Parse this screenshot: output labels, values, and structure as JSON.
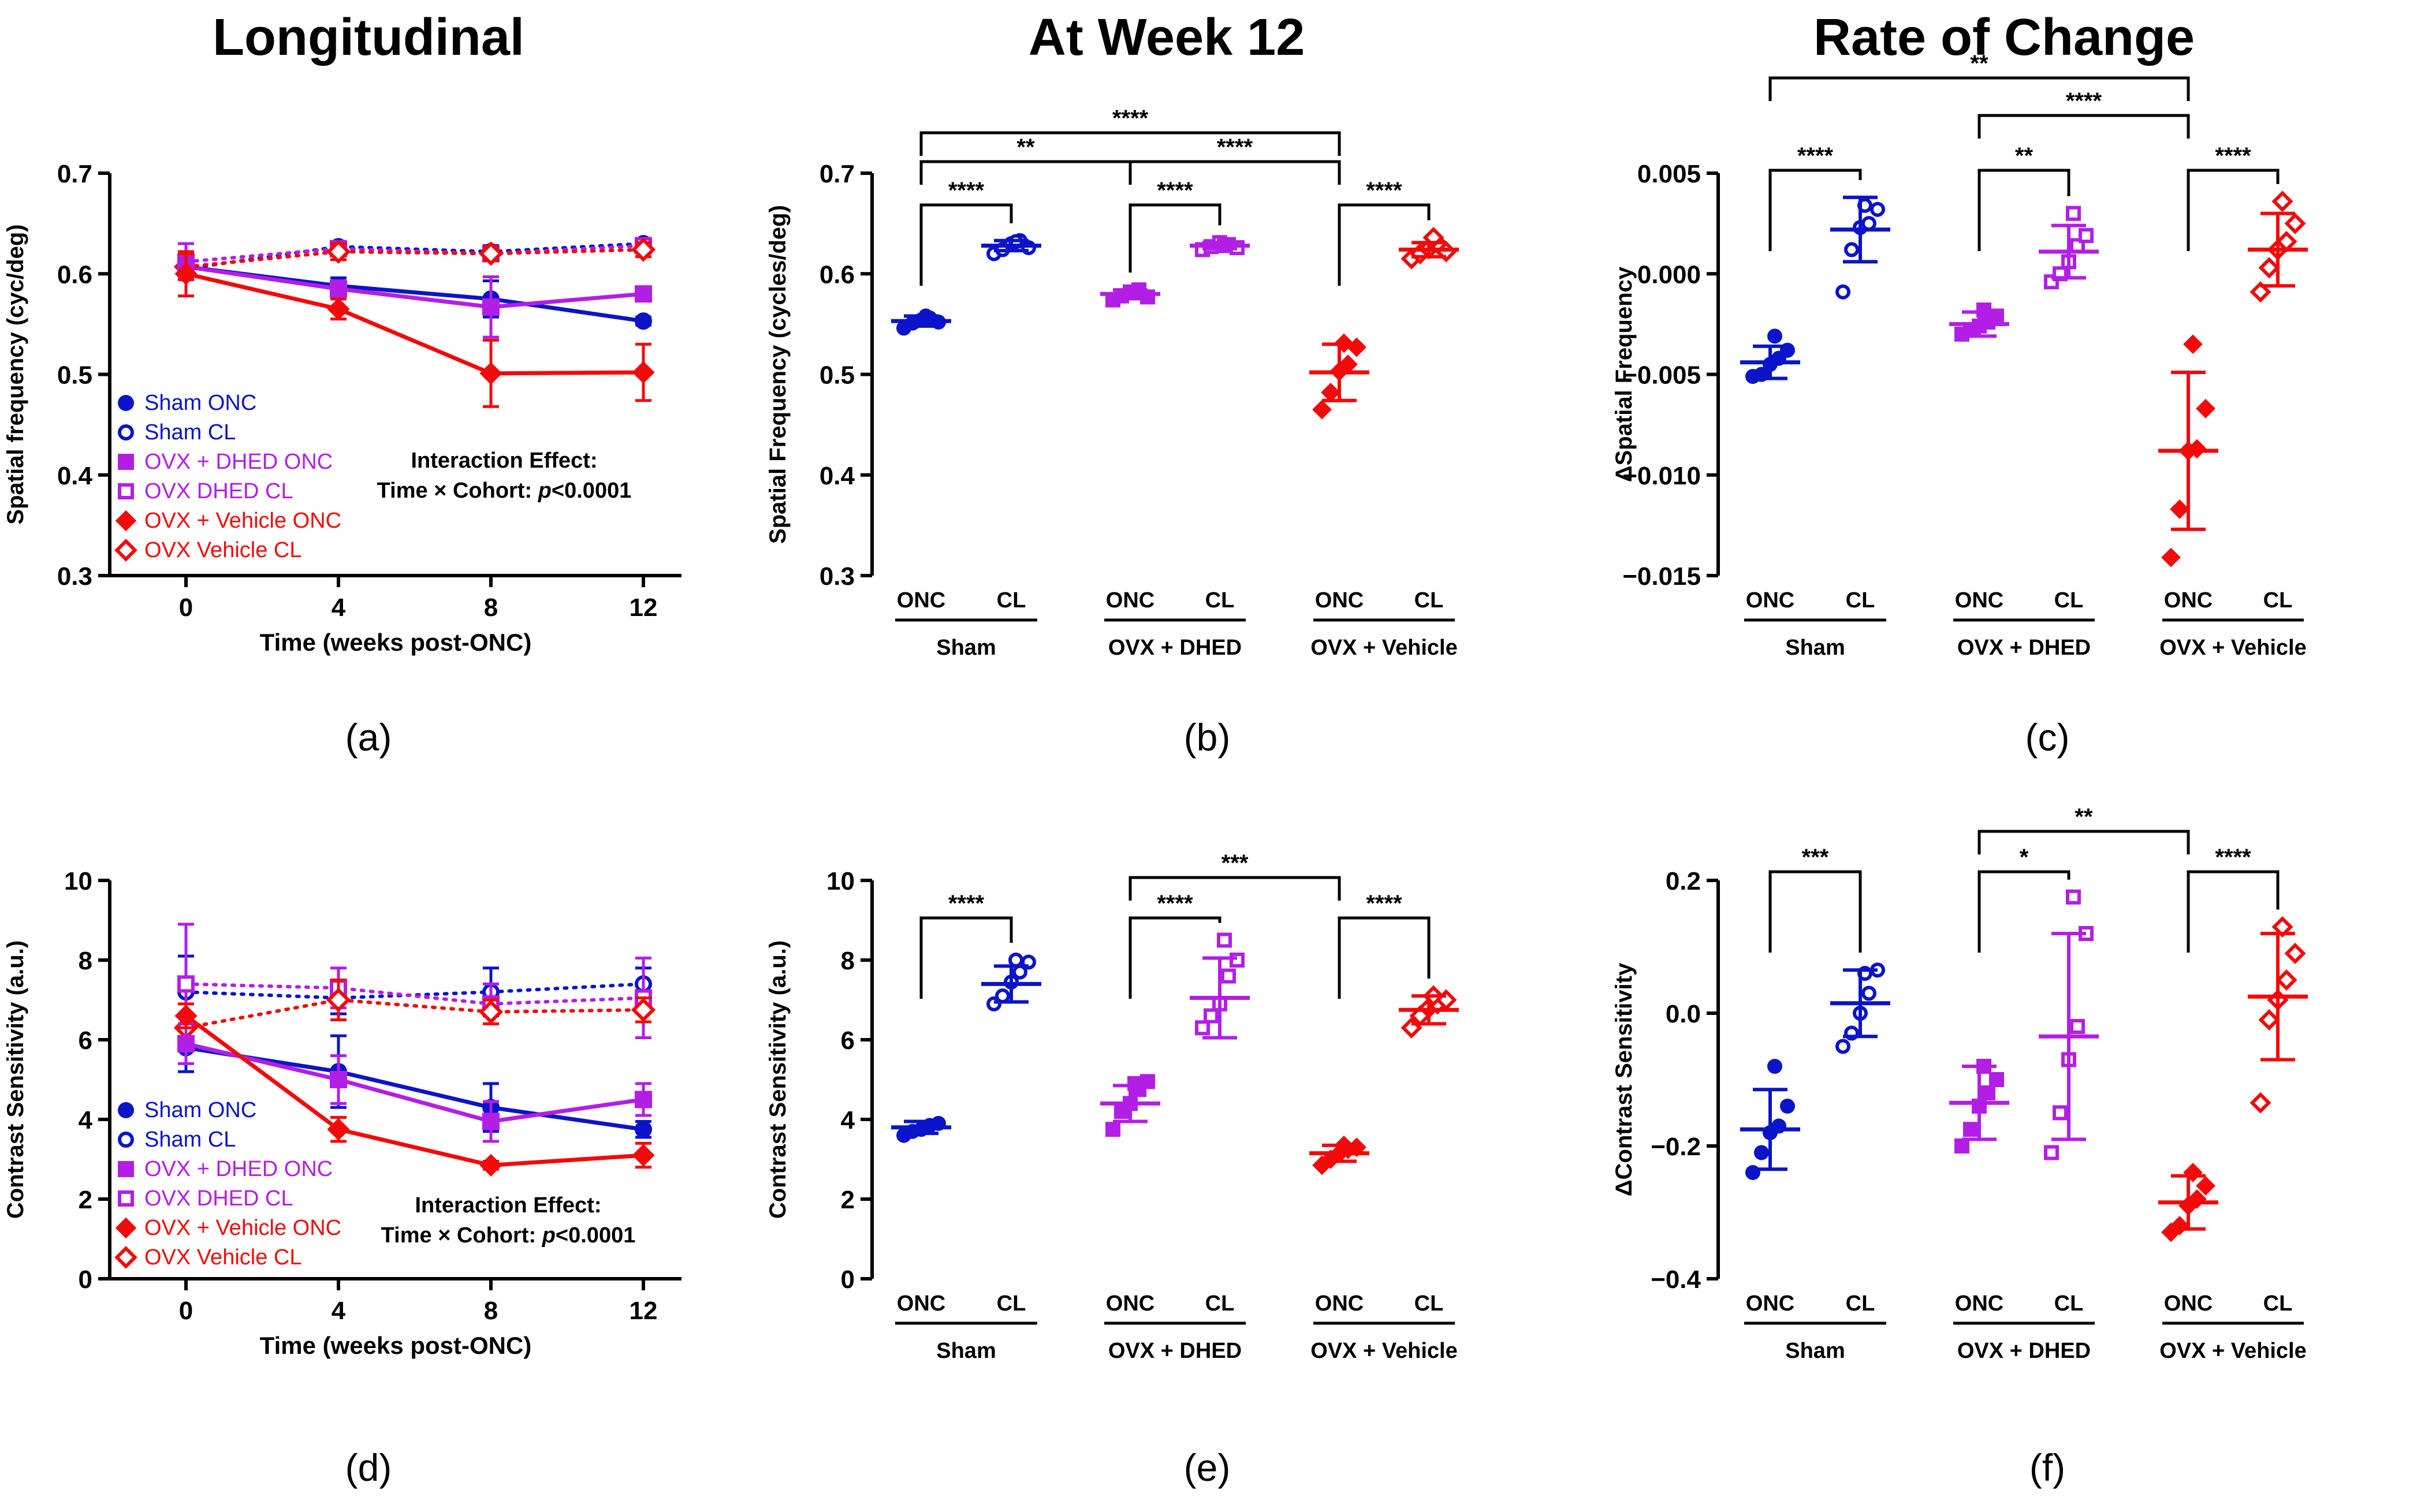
{
  "colors": {
    "sham": "#0b14c8",
    "dhed": "#b31ee6",
    "vehicle": "#f20a0a",
    "axis": "#000000"
  },
  "column_titles": [
    "Longitudinal",
    "At Week 12",
    "Rate of Change"
  ],
  "panel_labels": [
    "(a)",
    "(b)",
    "(c)",
    "(d)",
    "(e)",
    "(f)"
  ],
  "legend": [
    "Sham ONC",
    "Sham CL",
    "OVX + DHED ONC",
    "OVX DHED CL",
    "OVX + Vehicle ONC",
    "OVX Vehicle CL"
  ],
  "interaction": {
    "line1": "Interaction Effect:",
    "line2_prefix": "Time × Cohort: ",
    "line2_p": "p",
    "line2_suffix": "<0.0001"
  },
  "group_labels": {
    "onc": "ONC",
    "cl": "CL",
    "groups": [
      "Sham",
      "OVX + DHED",
      "OVX + Vehicle"
    ]
  },
  "chart_data": [
    {
      "id": "a",
      "type": "line",
      "title": "Longitudinal",
      "xlabel": "Time (weeks post-ONC)",
      "ylabel": "Spatial frequency (cyc/deg)",
      "x": [
        0,
        4,
        8,
        12
      ],
      "xlim": [
        -2,
        13
      ],
      "ylim": [
        0.3,
        0.7
      ],
      "xticks": [
        "0",
        "4",
        "8",
        "12"
      ],
      "yticks": [
        "0.3",
        "0.4",
        "0.5",
        "0.6",
        "0.7"
      ],
      "series": [
        {
          "name": "Sham ONC",
          "values": [
            0.607,
            0.588,
            0.575,
            0.553
          ],
          "err": [
            0.008,
            0.008,
            0.018,
            0.004
          ],
          "style": "solid",
          "marker": "circle",
          "filled": true,
          "color": "sham"
        },
        {
          "name": "Sham CL",
          "values": [
            0.605,
            0.627,
            0.622,
            0.63
          ],
          "err": [
            0.006,
            0.005,
            0.006,
            0.005
          ],
          "style": "dotted",
          "marker": "circle",
          "filled": false,
          "color": "sham"
        },
        {
          "name": "OVX + DHED ONC",
          "values": [
            0.607,
            0.585,
            0.567,
            0.58
          ],
          "err": [
            0.01,
            0.008,
            0.03,
            0.004
          ],
          "style": "solid",
          "marker": "square",
          "filled": true,
          "color": "dhed"
        },
        {
          "name": "OVX DHED CL",
          "values": [
            0.612,
            0.625,
            0.62,
            0.628
          ],
          "err": [
            0.018,
            0.007,
            0.007,
            0.006
          ],
          "style": "dotted",
          "marker": "square",
          "filled": false,
          "color": "dhed"
        },
        {
          "name": "OVX + Vehicle ONC",
          "values": [
            0.6,
            0.565,
            0.501,
            0.502
          ],
          "err": [
            0.022,
            0.01,
            0.033,
            0.028
          ],
          "style": "solid",
          "marker": "diamond",
          "filled": true,
          "color": "vehicle"
        },
        {
          "name": "OVX Vehicle CL",
          "values": [
            0.607,
            0.622,
            0.62,
            0.624
          ],
          "err": [
            0.012,
            0.008,
            0.007,
            0.007
          ],
          "style": "dotted",
          "marker": "diamond",
          "filled": false,
          "color": "vehicle"
        }
      ]
    },
    {
      "id": "b",
      "type": "scatter",
      "title": "At Week 12",
      "ylabel": "Spatial Frequency (cycles/deg)",
      "ylim": [
        0.3,
        0.7
      ],
      "yticks": [
        "0.3",
        "0.4",
        "0.5",
        "0.6",
        "0.7"
      ],
      "groups": [
        {
          "group": "Sham",
          "condition": "ONC",
          "color": "sham",
          "marker": "circle",
          "filled": true,
          "mean": 0.553,
          "sd": 0.005,
          "points": [
            0.546,
            0.551,
            0.554,
            0.556,
            0.552,
            0.558
          ]
        },
        {
          "group": "Sham",
          "condition": "CL",
          "color": "sham",
          "marker": "circle",
          "filled": false,
          "mean": 0.628,
          "sd": 0.005,
          "points": [
            0.62,
            0.624,
            0.63,
            0.633,
            0.626,
            0.632
          ]
        },
        {
          "group": "OVX + DHED",
          "condition": "ONC",
          "color": "dhed",
          "marker": "square",
          "filled": true,
          "mean": 0.58,
          "sd": 0.004,
          "points": [
            0.574,
            0.578,
            0.582,
            0.584,
            0.577,
            0.581
          ]
        },
        {
          "group": "OVX + DHED",
          "condition": "CL",
          "color": "dhed",
          "marker": "square",
          "filled": false,
          "mean": 0.628,
          "sd": 0.003,
          "points": [
            0.624,
            0.627,
            0.631,
            0.629,
            0.626,
            0.628
          ]
        },
        {
          "group": "OVX + Vehicle",
          "condition": "ONC",
          "color": "vehicle",
          "marker": "diamond",
          "filled": true,
          "mean": 0.502,
          "sd": 0.028,
          "points": [
            0.465,
            0.482,
            0.503,
            0.51,
            0.527,
            0.531
          ]
        },
        {
          "group": "OVX + Vehicle",
          "condition": "CL",
          "color": "vehicle",
          "marker": "diamond",
          "filled": false,
          "mean": 0.624,
          "sd": 0.007,
          "points": [
            0.615,
            0.62,
            0.625,
            0.63,
            0.622,
            0.636
          ]
        }
      ],
      "brackets": [
        {
          "from": 0,
          "to": 1,
          "label": "****",
          "level": 0
        },
        {
          "from": 2,
          "to": 3,
          "label": "****",
          "level": 0
        },
        {
          "from": 4,
          "to": 5,
          "label": "****",
          "level": 0
        },
        {
          "from": 0,
          "to": 2,
          "label": "**",
          "level": 1
        },
        {
          "from": 2,
          "to": 4,
          "label": "****",
          "level": 1
        },
        {
          "from": 0,
          "to": 4,
          "label": "****",
          "level": 2
        }
      ]
    },
    {
      "id": "c",
      "type": "scatter",
      "title": "Rate of Change",
      "ylabel": "ΔSpatial Frequency",
      "ylim": [
        -0.015,
        0.005
      ],
      "yticks": [
        "−0.015",
        "−0.010",
        "−0.005",
        "0.000",
        "0.005"
      ],
      "groups": [
        {
          "group": "Sham",
          "condition": "ONC",
          "color": "sham",
          "marker": "circle",
          "filled": true,
          "mean": -0.0044,
          "sd": 0.0008,
          "points": [
            -0.0051,
            -0.005,
            -0.0045,
            -0.0042,
            -0.0038,
            -0.0031
          ]
        },
        {
          "group": "Sham",
          "condition": "CL",
          "color": "sham",
          "marker": "circle",
          "filled": false,
          "mean": 0.0022,
          "sd": 0.0016,
          "points": [
            -0.0009,
            0.0012,
            0.0023,
            0.0025,
            0.0032,
            0.0034
          ]
        },
        {
          "group": "OVX + DHED",
          "condition": "ONC",
          "color": "dhed",
          "marker": "square",
          "filled": true,
          "mean": -0.0025,
          "sd": 0.0006,
          "points": [
            -0.003,
            -0.0028,
            -0.0026,
            -0.0024,
            -0.0021,
            -0.0018
          ]
        },
        {
          "group": "OVX + DHED",
          "condition": "CL",
          "color": "dhed",
          "marker": "square",
          "filled": false,
          "mean": 0.0011,
          "sd": 0.0013,
          "points": [
            -0.0004,
            0.0,
            0.0006,
            0.0014,
            0.0019,
            0.003
          ]
        },
        {
          "group": "OVX + Vehicle",
          "condition": "ONC",
          "color": "vehicle",
          "marker": "diamond",
          "filled": true,
          "mean": -0.0088,
          "sd": 0.0039,
          "points": [
            -0.0141,
            -0.0117,
            -0.0088,
            -0.0087,
            -0.0067,
            -0.0035
          ]
        },
        {
          "group": "OVX + Vehicle",
          "condition": "CL",
          "color": "vehicle",
          "marker": "diamond",
          "filled": false,
          "mean": 0.0012,
          "sd": 0.0018,
          "points": [
            -0.0009,
            0.0003,
            0.0012,
            0.0016,
            0.0025,
            0.0036
          ]
        }
      ],
      "brackets": [
        {
          "from": 0,
          "to": 1,
          "label": "****",
          "level": 0
        },
        {
          "from": 2,
          "to": 3,
          "label": "**",
          "level": 0
        },
        {
          "from": 4,
          "to": 5,
          "label": "****",
          "level": 0
        },
        {
          "from": 2,
          "to": 4,
          "label": "****",
          "level": 1
        },
        {
          "from": 0,
          "to": 4,
          "label": "**",
          "level": 2
        }
      ]
    },
    {
      "id": "d",
      "type": "line",
      "xlabel": "Time (weeks post-ONC)",
      "ylabel": "Contrast Sensitivity (a.u.)",
      "x": [
        0,
        4,
        8,
        12
      ],
      "xlim": [
        -2,
        13
      ],
      "ylim": [
        0,
        10
      ],
      "xticks": [
        "0",
        "4",
        "8",
        "12"
      ],
      "yticks": [
        "0",
        "2",
        "4",
        "6",
        "8",
        "10"
      ],
      "series": [
        {
          "name": "Sham ONC",
          "values": [
            5.8,
            5.2,
            4.3,
            3.75
          ],
          "err": [
            0.6,
            0.9,
            0.6,
            0.2
          ],
          "style": "solid",
          "marker": "circle",
          "filled": true,
          "color": "sham"
        },
        {
          "name": "Sham CL",
          "values": [
            7.2,
            7.05,
            7.2,
            7.4
          ],
          "err": [
            0.9,
            0.4,
            0.6,
            0.4
          ],
          "style": "dotted",
          "marker": "circle",
          "filled": false,
          "color": "sham"
        },
        {
          "name": "OVX + DHED ONC",
          "values": [
            5.9,
            5.0,
            3.95,
            4.5
          ],
          "err": [
            0.5,
            0.6,
            0.5,
            0.4
          ],
          "style": "solid",
          "marker": "square",
          "filled": true,
          "color": "dhed"
        },
        {
          "name": "OVX DHED CL",
          "values": [
            7.4,
            7.3,
            6.9,
            7.05
          ],
          "err": [
            1.5,
            0.5,
            0.5,
            1.0
          ],
          "style": "dotted",
          "marker": "square",
          "filled": false,
          "color": "dhed"
        },
        {
          "name": "OVX + Vehicle ONC",
          "values": [
            6.6,
            3.75,
            2.85,
            3.1
          ],
          "err": [
            0.3,
            0.3,
            0.1,
            0.3
          ],
          "style": "solid",
          "marker": "diamond",
          "filled": true,
          "color": "vehicle"
        },
        {
          "name": "OVX Vehicle CL",
          "values": [
            6.3,
            7.0,
            6.7,
            6.75
          ],
          "err": [
            0.3,
            0.5,
            0.3,
            0.3
          ],
          "style": "dotted",
          "marker": "diamond",
          "filled": false,
          "color": "vehicle"
        }
      ]
    },
    {
      "id": "e",
      "type": "scatter",
      "ylabel": "Contrast Sensitivity (a.u.)",
      "ylim": [
        0,
        10
      ],
      "yticks": [
        "0",
        "2",
        "4",
        "6",
        "8",
        "10"
      ],
      "groups": [
        {
          "group": "Sham",
          "condition": "ONC",
          "color": "sham",
          "marker": "circle",
          "filled": true,
          "mean": 3.8,
          "sd": 0.15,
          "points": [
            3.6,
            3.7,
            3.75,
            3.85,
            3.9,
            3.8
          ]
        },
        {
          "group": "Sham",
          "condition": "CL",
          "color": "sham",
          "marker": "circle",
          "filled": false,
          "mean": 7.4,
          "sd": 0.45,
          "points": [
            6.9,
            7.1,
            7.45,
            7.7,
            7.95,
            8.0
          ]
        },
        {
          "group": "OVX + DHED",
          "condition": "ONC",
          "color": "dhed",
          "marker": "square",
          "filled": true,
          "mean": 4.4,
          "sd": 0.45,
          "points": [
            3.75,
            4.2,
            4.4,
            4.75,
            4.95,
            4.9
          ]
        },
        {
          "group": "OVX + DHED",
          "condition": "CL",
          "color": "dhed",
          "marker": "square",
          "filled": false,
          "mean": 7.05,
          "sd": 1.0,
          "points": [
            6.3,
            6.6,
            6.9,
            7.6,
            8.0,
            8.5
          ]
        },
        {
          "group": "OVX + Vehicle",
          "condition": "ONC",
          "color": "vehicle",
          "marker": "diamond",
          "filled": true,
          "mean": 3.15,
          "sd": 0.2,
          "points": [
            2.85,
            3.0,
            3.15,
            3.25,
            3.3,
            3.35
          ]
        },
        {
          "group": "OVX + Vehicle",
          "condition": "CL",
          "color": "vehicle",
          "marker": "diamond",
          "filled": false,
          "mean": 6.75,
          "sd": 0.35,
          "points": [
            6.3,
            6.6,
            6.8,
            6.9,
            7.0,
            7.1
          ]
        }
      ],
      "brackets": [
        {
          "from": 0,
          "to": 1,
          "label": "****",
          "level": 0
        },
        {
          "from": 2,
          "to": 3,
          "label": "****",
          "level": 0
        },
        {
          "from": 4,
          "to": 5,
          "label": "****",
          "level": 0
        },
        {
          "from": 2,
          "to": 4,
          "label": "***",
          "level": 1
        }
      ]
    },
    {
      "id": "f",
      "type": "scatter",
      "ylabel": "ΔContrast Sensitivity",
      "ylim": [
        -0.4,
        0.2
      ],
      "yticks": [
        "−0.4",
        "−0.2",
        "0.0",
        "0.2"
      ],
      "groups": [
        {
          "group": "Sham",
          "condition": "ONC",
          "color": "sham",
          "marker": "circle",
          "filled": true,
          "mean": -0.175,
          "sd": 0.06,
          "points": [
            -0.24,
            -0.21,
            -0.18,
            -0.17,
            -0.14,
            -0.08
          ]
        },
        {
          "group": "Sham",
          "condition": "CL",
          "color": "sham",
          "marker": "circle",
          "filled": false,
          "mean": 0.015,
          "sd": 0.05,
          "points": [
            -0.05,
            -0.03,
            0.0,
            0.03,
            0.065,
            0.06
          ]
        },
        {
          "group": "OVX + DHED",
          "condition": "ONC",
          "color": "dhed",
          "marker": "square",
          "filled": true,
          "mean": -0.135,
          "sd": 0.055,
          "points": [
            -0.2,
            -0.175,
            -0.14,
            -0.12,
            -0.1,
            -0.08
          ]
        },
        {
          "group": "OVX + DHED",
          "condition": "CL",
          "color": "dhed",
          "marker": "square",
          "filled": false,
          "mean": -0.035,
          "sd": 0.155,
          "points": [
            -0.21,
            -0.15,
            -0.07,
            -0.02,
            0.12,
            0.175
          ]
        },
        {
          "group": "OVX + Vehicle",
          "condition": "ONC",
          "color": "vehicle",
          "marker": "diamond",
          "filled": true,
          "mean": -0.285,
          "sd": 0.04,
          "points": [
            -0.33,
            -0.32,
            -0.29,
            -0.28,
            -0.26,
            -0.24
          ]
        },
        {
          "group": "OVX + Vehicle",
          "condition": "CL",
          "color": "vehicle",
          "marker": "diamond",
          "filled": false,
          "mean": 0.025,
          "sd": 0.095,
          "points": [
            -0.135,
            -0.01,
            0.02,
            0.05,
            0.09,
            0.13
          ]
        }
      ],
      "brackets": [
        {
          "from": 0,
          "to": 1,
          "label": "***",
          "level": 0
        },
        {
          "from": 2,
          "to": 3,
          "label": "*",
          "level": 0
        },
        {
          "from": 4,
          "to": 5,
          "label": "****",
          "level": 0
        },
        {
          "from": 2,
          "to": 4,
          "label": "**",
          "level": 1
        }
      ]
    }
  ]
}
